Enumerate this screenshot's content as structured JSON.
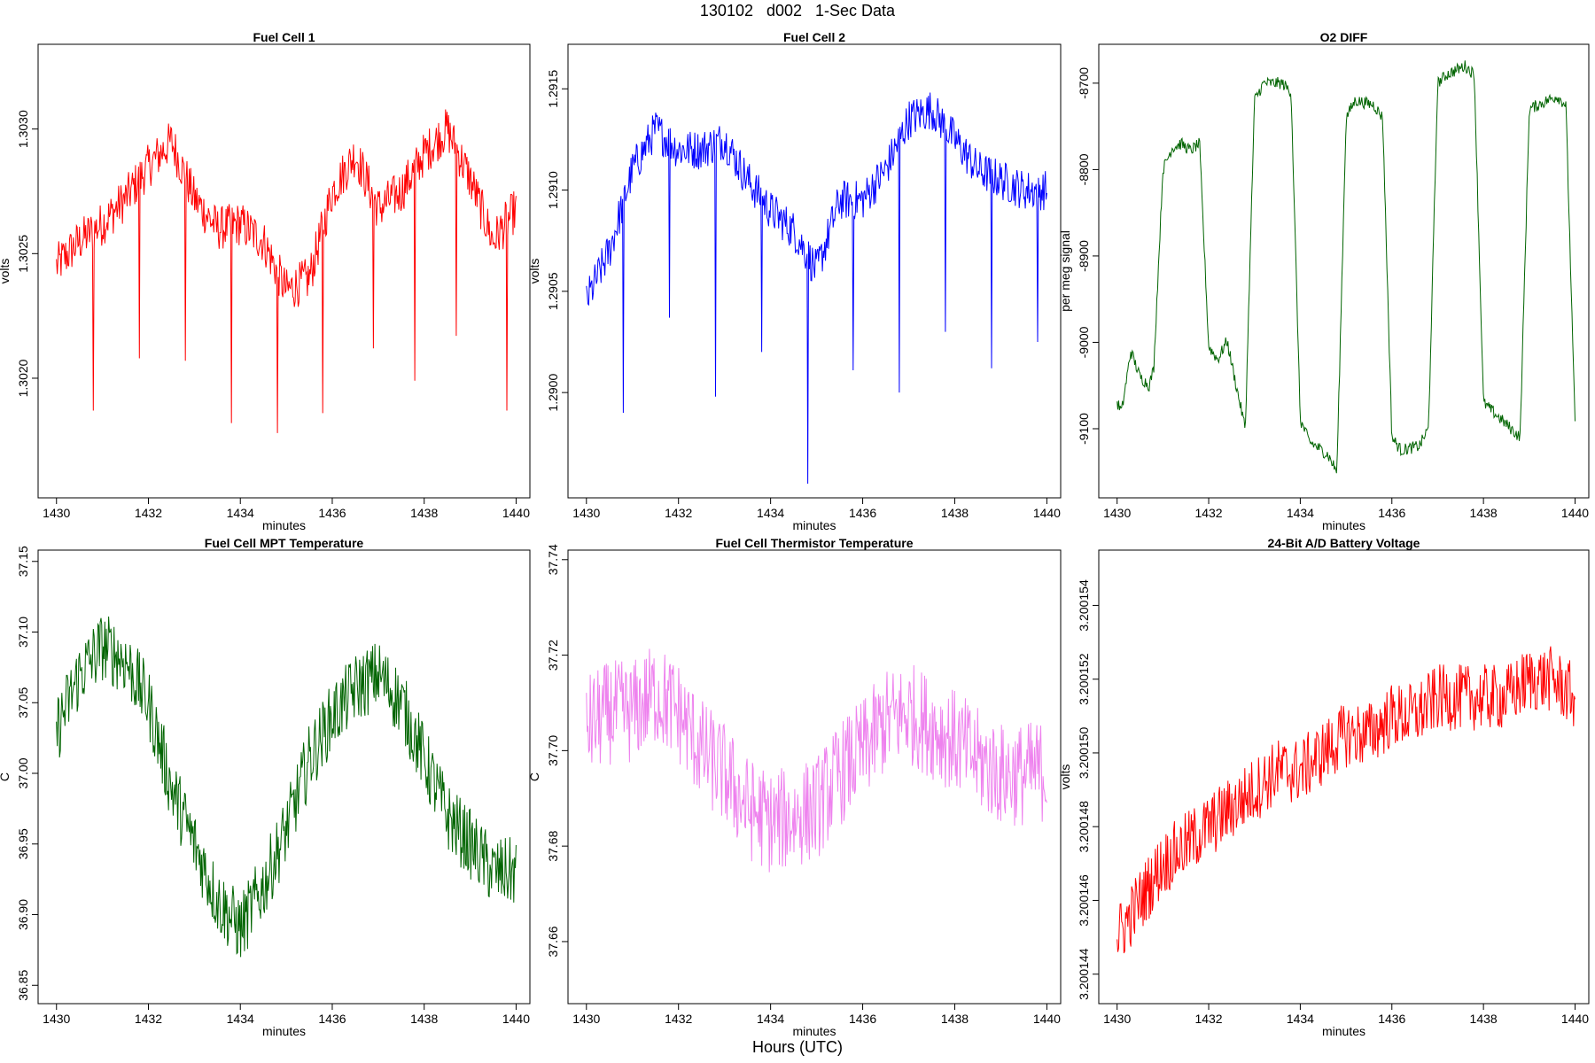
{
  "page_title": "130102   d002   1-Sec Data",
  "footer_xlabel": "Hours (UTC)",
  "chart_data": [
    {
      "type": "line",
      "title": "Fuel Cell 1",
      "xlabel": "minutes",
      "ylabel": "volts",
      "color": "#ff0000",
      "xlim": [
        1429.6,
        1440.3
      ],
      "ylim": [
        1.30152,
        1.30334
      ],
      "xticks": [
        1430,
        1432,
        1434,
        1436,
        1438,
        1440
      ],
      "yticks": [
        1.302,
        1.3025,
        1.303
      ],
      "ytick_labels": [
        "1.3020",
        "1.3025",
        "1.3030"
      ],
      "x": [
        1430.0,
        1430.5,
        1431.0,
        1431.5,
        1432.0,
        1432.5,
        1433.0,
        1433.5,
        1434.0,
        1434.5,
        1435.0,
        1435.5,
        1436.0,
        1436.5,
        1437.0,
        1437.5,
        1438.0,
        1438.5,
        1439.0,
        1439.5,
        1440.0
      ],
      "y": [
        1.30245,
        1.30255,
        1.30262,
        1.30272,
        1.30285,
        1.30295,
        1.30272,
        1.3026,
        1.30262,
        1.30255,
        1.30235,
        1.3024,
        1.30275,
        1.3029,
        1.30268,
        1.30275,
        1.3029,
        1.303,
        1.3028,
        1.30255,
        1.30268
      ],
      "noise": 9e-05,
      "spikes": [
        {
          "x": 1430.8,
          "y": 1.30187
        },
        {
          "x": 1431.8,
          "y": 1.30208
        },
        {
          "x": 1432.8,
          "y": 1.30207
        },
        {
          "x": 1433.8,
          "y": 1.30182
        },
        {
          "x": 1434.8,
          "y": 1.30178
        },
        {
          "x": 1435.8,
          "y": 1.30186
        },
        {
          "x": 1436.9,
          "y": 1.30212
        },
        {
          "x": 1437.8,
          "y": 1.30199
        },
        {
          "x": 1438.7,
          "y": 1.30217
        },
        {
          "x": 1439.8,
          "y": 1.30187
        }
      ]
    },
    {
      "type": "line",
      "title": "Fuel Cell 2",
      "xlabel": "minutes",
      "ylabel": "volts",
      "color": "#0000ff",
      "xlim": [
        1429.6,
        1440.3
      ],
      "ylim": [
        1.28948,
        1.29172
      ],
      "xticks": [
        1430,
        1432,
        1434,
        1436,
        1438,
        1440
      ],
      "yticks": [
        1.29,
        1.2905,
        1.291,
        1.2915
      ],
      "ytick_labels": [
        "1.2900",
        "1.2905",
        "1.2910",
        "1.2915"
      ],
      "x": [
        1430.0,
        1430.5,
        1431.0,
        1431.5,
        1432.0,
        1432.5,
        1433.0,
        1433.5,
        1434.0,
        1434.5,
        1435.0,
        1435.5,
        1436.0,
        1436.5,
        1437.0,
        1437.5,
        1438.0,
        1438.5,
        1439.0,
        1439.5,
        1440.0
      ],
      "y": [
        1.29045,
        1.2907,
        1.2911,
        1.2913,
        1.2912,
        1.2912,
        1.29125,
        1.29105,
        1.2909,
        1.2908,
        1.2906,
        1.29095,
        1.29095,
        1.2911,
        1.29135,
        1.2914,
        1.29125,
        1.2911,
        1.29105,
        1.291,
        1.291
      ],
      "noise": 0.0001,
      "spikes": [
        {
          "x": 1430.8,
          "y": 1.2899
        },
        {
          "x": 1431.8,
          "y": 1.29037
        },
        {
          "x": 1432.8,
          "y": 1.28998
        },
        {
          "x": 1433.8,
          "y": 1.2902
        },
        {
          "x": 1434.8,
          "y": 1.28955
        },
        {
          "x": 1435.8,
          "y": 1.29011
        },
        {
          "x": 1436.8,
          "y": 1.29
        },
        {
          "x": 1437.8,
          "y": 1.2903
        },
        {
          "x": 1438.8,
          "y": 1.29012
        },
        {
          "x": 1439.8,
          "y": 1.29025
        }
      ]
    },
    {
      "type": "line",
      "title": "O2 DIFF",
      "xlabel": "minutes",
      "ylabel": "per meg signal",
      "color": "#006400",
      "xlim": [
        1429.6,
        1440.3
      ],
      "ylim": [
        -9180,
        -8655
      ],
      "xticks": [
        1430,
        1432,
        1434,
        1436,
        1438,
        1440
      ],
      "yticks": [
        -9100,
        -9000,
        -8900,
        -8800,
        -8700
      ],
      "ytick_labels": [
        "-9100",
        "-9000",
        "-8900",
        "-8800",
        "-8700"
      ],
      "x": [
        1430.0,
        1430.1,
        1430.3,
        1430.5,
        1430.7,
        1430.8,
        1431.0,
        1431.2,
        1431.4,
        1431.6,
        1431.8,
        1432.0,
        1432.2,
        1432.4,
        1432.6,
        1432.8,
        1433.0,
        1433.2,
        1433.6,
        1433.8,
        1434.0,
        1434.2,
        1434.6,
        1434.8,
        1435.0,
        1435.2,
        1435.6,
        1435.8,
        1436.0,
        1436.2,
        1436.6,
        1436.8,
        1437.0,
        1437.2,
        1437.6,
        1437.8,
        1438.0,
        1438.2,
        1438.6,
        1438.8,
        1439.0,
        1439.2,
        1439.6,
        1439.8,
        1440.0
      ],
      "y": [
        -9070,
        -9080,
        -9010,
        -9040,
        -9050,
        -9030,
        -8800,
        -8775,
        -8770,
        -8778,
        -8770,
        -9005,
        -9020,
        -8998,
        -9050,
        -9100,
        -8720,
        -8700,
        -8700,
        -8710,
        -9090,
        -9115,
        -9130,
        -9150,
        -8740,
        -8720,
        -8725,
        -8740,
        -9110,
        -9125,
        -9120,
        -9100,
        -8700,
        -8690,
        -8680,
        -8690,
        -9070,
        -9080,
        -9100,
        -9110,
        -8730,
        -8725,
        -8715,
        -8725,
        -9095
      ],
      "noise": 7,
      "spikes": []
    },
    {
      "type": "line",
      "title": "Fuel Cell MPT Temperature",
      "xlabel": "minutes",
      "ylabel": "C",
      "color": "#006400",
      "xlim": [
        1429.6,
        1440.3
      ],
      "ylim": [
        36.837,
        37.158
      ],
      "xticks": [
        1430,
        1432,
        1434,
        1436,
        1438,
        1440
      ],
      "yticks": [
        36.85,
        36.9,
        36.95,
        37.0,
        37.05,
        37.1,
        37.15
      ],
      "ytick_labels": [
        "36.85",
        "36.90",
        "36.95",
        "37.00",
        "37.05",
        "37.10",
        "37.15"
      ],
      "x": [
        1430.0,
        1430.5,
        1431.0,
        1431.5,
        1432.0,
        1432.5,
        1433.0,
        1433.5,
        1434.0,
        1434.5,
        1435.0,
        1435.5,
        1436.0,
        1436.5,
        1437.0,
        1437.5,
        1438.0,
        1438.5,
        1439.0,
        1439.5,
        1440.0
      ],
      "y": [
        37.03,
        37.07,
        37.09,
        37.08,
        37.05,
        36.99,
        36.95,
        36.91,
        36.89,
        36.92,
        36.96,
        37.01,
        37.04,
        37.06,
        37.07,
        37.05,
        37.01,
        36.97,
        36.95,
        36.93,
        36.93
      ],
      "noise": 0.025,
      "spikes": []
    },
    {
      "type": "line",
      "title": "Fuel Cell Thermistor Temperature",
      "xlabel": "minutes",
      "ylabel": "C",
      "color": "#ee82ee",
      "xlim": [
        1429.6,
        1440.3
      ],
      "ylim": [
        37.647,
        37.742
      ],
      "xticks": [
        1430,
        1432,
        1434,
        1436,
        1438,
        1440
      ],
      "yticks": [
        37.66,
        37.68,
        37.7,
        37.72,
        37.74
      ],
      "ytick_labels": [
        "37.66",
        "37.68",
        "37.70",
        "37.72",
        "37.74"
      ],
      "x": [
        1430.0,
        1430.5,
        1431.0,
        1431.5,
        1432.0,
        1432.5,
        1433.0,
        1433.5,
        1434.0,
        1434.5,
        1435.0,
        1435.5,
        1436.0,
        1436.5,
        1437.0,
        1437.5,
        1438.0,
        1438.5,
        1439.0,
        1439.5,
        1440.0
      ],
      "y": [
        37.705,
        37.708,
        37.708,
        37.712,
        37.708,
        37.7,
        37.695,
        37.688,
        37.685,
        37.686,
        37.688,
        37.695,
        37.7,
        37.706,
        37.708,
        37.705,
        37.702,
        37.698,
        37.695,
        37.695,
        37.696
      ],
      "noise": 0.011,
      "spikes": []
    },
    {
      "type": "line",
      "title": "24-Bit A/D Battery Voltage",
      "xlabel": "minutes",
      "ylabel": "volts",
      "color": "#ff0000",
      "xlim": [
        1429.6,
        1440.3
      ],
      "ylim": [
        3.2001432,
        3.2001555
      ],
      "xticks": [
        1430,
        1432,
        1434,
        1436,
        1438,
        1440
      ],
      "yticks": [
        3.200144,
        3.200146,
        3.200148,
        3.20015,
        3.200152,
        3.200154
      ],
      "ytick_labels": [
        "3.200144",
        "3.200146",
        "3.200148",
        "3.200150",
        "3.200152",
        "3.200154"
      ],
      "x": [
        1430.0,
        1430.5,
        1431.0,
        1431.5,
        1432.0,
        1432.5,
        1433.0,
        1433.5,
        1434.0,
        1434.5,
        1435.0,
        1435.5,
        1436.0,
        1436.5,
        1437.0,
        1437.5,
        1438.0,
        1438.5,
        1439.0,
        1439.5,
        1440.0
      ],
      "y": [
        3.200145,
        3.200146,
        3.200147,
        3.2001475,
        3.200148,
        3.2001485,
        3.200149,
        3.2001495,
        3.2001495,
        3.20015,
        3.2001505,
        3.2001505,
        3.200151,
        3.200151,
        3.2001515,
        3.2001515,
        3.2001515,
        3.2001515,
        3.200152,
        3.200152,
        3.2001515
      ],
      "noise": 9e-07,
      "spikes": []
    }
  ]
}
